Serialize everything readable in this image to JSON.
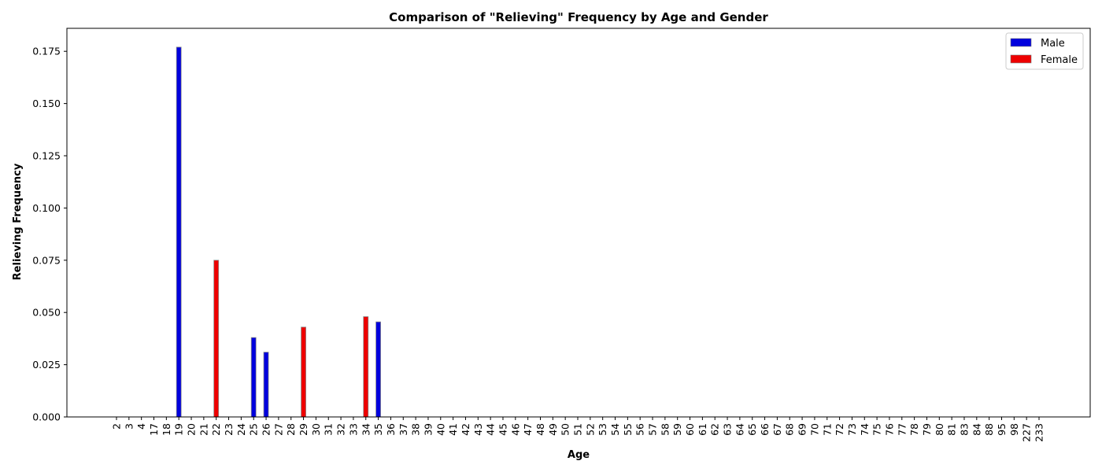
{
  "chart_data": {
    "type": "bar",
    "title": "Comparison of \"Relieving\" Frequency by Age and Gender",
    "xlabel": "Age",
    "ylabel": "Relieving Frequency",
    "ylim": [
      0,
      0.186
    ],
    "yticks": [
      "0.000",
      "0.025",
      "0.050",
      "0.075",
      "0.100",
      "0.125",
      "0.150",
      "0.175"
    ],
    "grid": false,
    "legend_position": "top-right",
    "categories": [
      "2",
      "3",
      "4",
      "17",
      "18",
      "19",
      "20",
      "21",
      "22",
      "23",
      "24",
      "25",
      "26",
      "27",
      "28",
      "29",
      "30",
      "31",
      "32",
      "33",
      "34",
      "35",
      "36",
      "37",
      "38",
      "39",
      "40",
      "41",
      "42",
      "43",
      "44",
      "45",
      "46",
      "47",
      "48",
      "49",
      "50",
      "51",
      "52",
      "53",
      "54",
      "55",
      "56",
      "57",
      "58",
      "59",
      "60",
      "61",
      "62",
      "63",
      "64",
      "65",
      "66",
      "67",
      "68",
      "69",
      "70",
      "71",
      "72",
      "73",
      "74",
      "75",
      "76",
      "77",
      "78",
      "79",
      "80",
      "81",
      "83",
      "84",
      "88",
      "95",
      "98",
      "227",
      "233"
    ],
    "series": [
      {
        "name": "Male",
        "color": "#0000dd",
        "values": [
          0,
          0,
          0,
          0,
          0,
          0.177,
          0,
          0,
          0,
          0,
          0,
          0.038,
          0.031,
          0,
          0,
          0,
          0,
          0,
          0,
          0,
          0,
          0.0455,
          0,
          0,
          0,
          0,
          0,
          0,
          0,
          0,
          0,
          0,
          0,
          0,
          0,
          0,
          0,
          0,
          0,
          0,
          0,
          0,
          0,
          0,
          0,
          0,
          0,
          0,
          0,
          0,
          0,
          0,
          0,
          0,
          0,
          0,
          0,
          0,
          0,
          0,
          0,
          0,
          0,
          0,
          0,
          0,
          0,
          0,
          0,
          0,
          0,
          0,
          0,
          0,
          0
        ]
      },
      {
        "name": "Female",
        "color": "#ee0000",
        "values": [
          0,
          0,
          0,
          0,
          0,
          0,
          0,
          0,
          0.075,
          0,
          0,
          0,
          0,
          0,
          0,
          0.043,
          0,
          0,
          0,
          0,
          0.048,
          0,
          0,
          0,
          0,
          0,
          0,
          0,
          0,
          0,
          0,
          0,
          0,
          0,
          0,
          0,
          0,
          0,
          0,
          0,
          0,
          0,
          0,
          0,
          0,
          0,
          0,
          0,
          0,
          0,
          0,
          0,
          0,
          0,
          0,
          0,
          0,
          0,
          0,
          0,
          0,
          0,
          0,
          0,
          0,
          0,
          0,
          0,
          0,
          0,
          0,
          0,
          0,
          0,
          0
        ]
      }
    ]
  }
}
